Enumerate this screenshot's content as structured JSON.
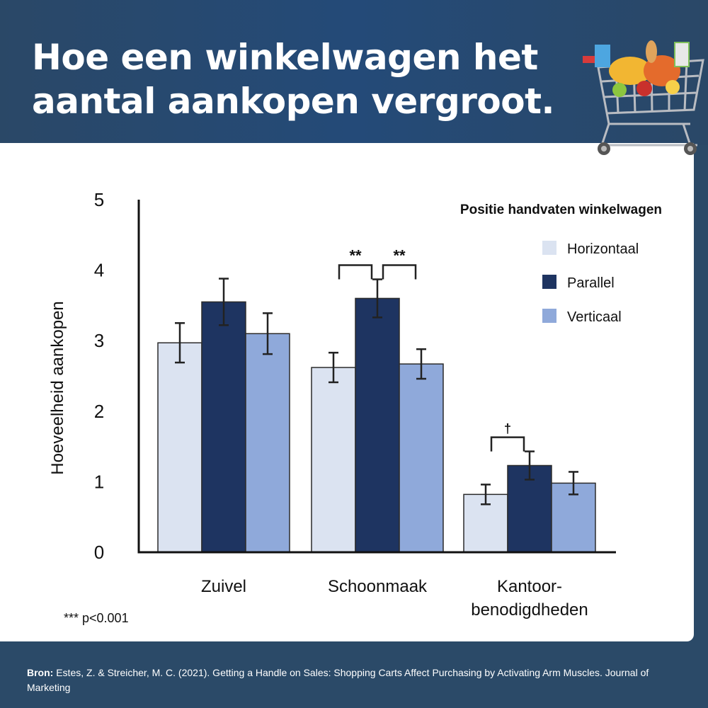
{
  "header": {
    "title": "Hoe een winkelwagen het aantal aankopen vergroot."
  },
  "footnote": "*** p<0.001",
  "footer": {
    "source_label": "Bron:",
    "source_text": "Estes, Z. & Streicher, M. C. (2021). Getting a Handle on Sales: Shopping Carts Affect Purchasing by Activating Arm Muscles. Journal of Marketing"
  },
  "icons": {
    "header_image": "shopping-cart-icon"
  },
  "chart_data": {
    "type": "bar",
    "ylabel": "Hoeveelheid aankopen",
    "ylim": [
      0,
      5
    ],
    "yticks": [
      "0",
      "1",
      "2",
      "3",
      "4",
      "5"
    ],
    "categories": [
      [
        "Zuivel"
      ],
      [
        "Schoonmaak"
      ],
      [
        "Kantoor-",
        "benodigdheden"
      ]
    ],
    "legend_title": "Positie handvaten winkelwagen",
    "legend_position": "top-right",
    "grid": false,
    "series": [
      {
        "name": "Horizontaal",
        "color": "#dbe3f1",
        "values": [
          2.97,
          2.62,
          0.82
        ],
        "errors": [
          0.28,
          0.21,
          0.14
        ]
      },
      {
        "name": "Parallel",
        "color": "#1e3461",
        "values": [
          3.55,
          3.6,
          1.23
        ],
        "errors": [
          0.33,
          0.27,
          0.2
        ]
      },
      {
        "name": "Verticaal",
        "color": "#8fa9da",
        "values": [
          3.1,
          2.67,
          0.98
        ],
        "errors": [
          0.29,
          0.21,
          0.16
        ]
      }
    ],
    "annotations": [
      {
        "text": "**",
        "category": 1,
        "between": [
          0,
          1
        ]
      },
      {
        "text": "**",
        "category": 1,
        "between": [
          1,
          2
        ]
      },
      {
        "text": "†",
        "category": 2,
        "between": [
          0,
          1
        ]
      }
    ]
  }
}
